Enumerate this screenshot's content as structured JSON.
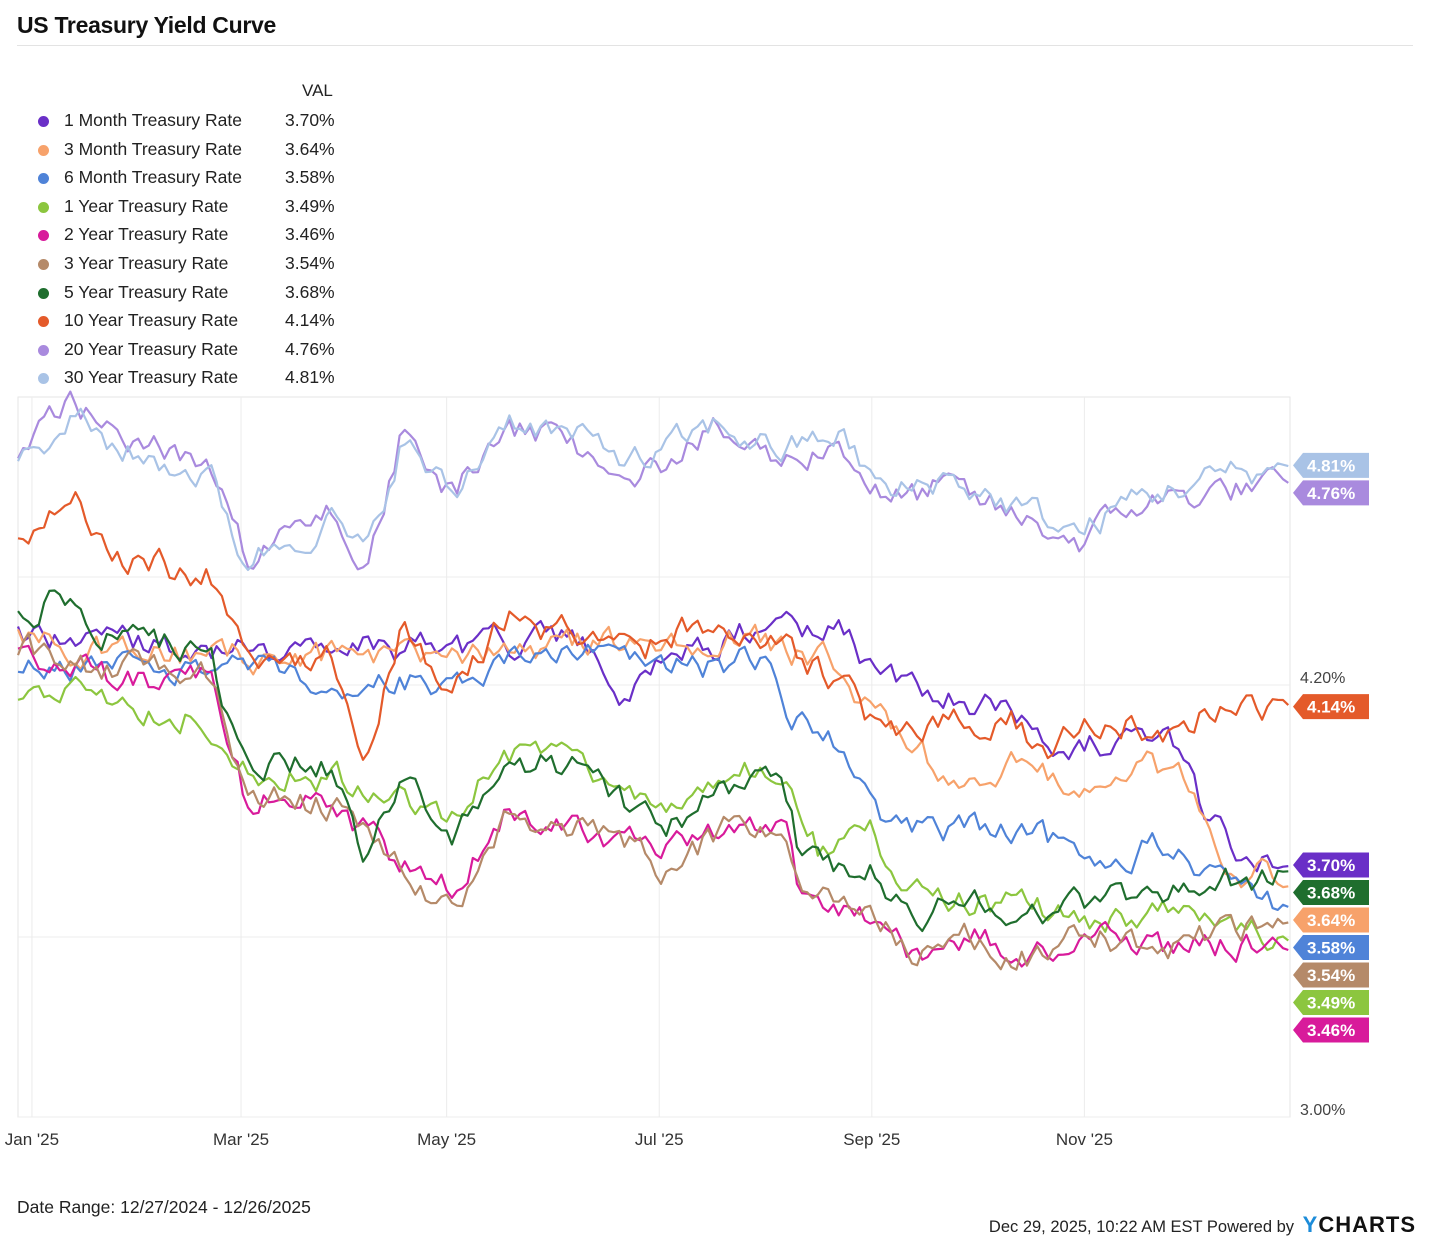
{
  "title": "US Treasury Yield Curve",
  "legend_header": "VAL",
  "footer": {
    "date_range": "Date Range: 12/27/2024 - 12/26/2025",
    "timestamp": "Dec 29, 2025, 10:22 AM EST Powered by",
    "brand_y": "Y",
    "brand_rest": "CHARTS"
  },
  "chart_data": {
    "type": "line",
    "title": "US Treasury Yield Curve",
    "x_range": [
      0,
      365
    ],
    "x_tick_positions": [
      4,
      64,
      123,
      184,
      245,
      306
    ],
    "x_tick_labels": [
      "Jan '25",
      "Mar '25",
      "May '25",
      "Jul '25",
      "Sep '25",
      "Nov '25"
    ],
    "ylim": [
      3.0,
      5.0
    ],
    "y_tick_values": [
      3.0,
      3.5,
      4.2,
      4.5
    ],
    "y_tick_labels": [
      "3.00%",
      "",
      "4.20%",
      ""
    ],
    "grid": true,
    "series": [
      {
        "name": "1 Month Treasury Rate",
        "value": "3.70%",
        "last": 3.7,
        "color": "#6a2fc7",
        "knots": [
          [
            0,
            4.35
          ],
          [
            30,
            4.32
          ],
          [
            60,
            4.3
          ],
          [
            90,
            4.3
          ],
          [
            120,
            4.3
          ],
          [
            150,
            4.32
          ],
          [
            165,
            4.3
          ],
          [
            175,
            4.15
          ],
          [
            185,
            4.3
          ],
          [
            200,
            4.29
          ],
          [
            215,
            4.38
          ],
          [
            235,
            4.35
          ],
          [
            248,
            4.22
          ],
          [
            265,
            4.18
          ],
          [
            285,
            4.13
          ],
          [
            300,
            4.05
          ],
          [
            320,
            4.02
          ],
          [
            335,
            4.02
          ],
          [
            340,
            3.85
          ],
          [
            350,
            3.74
          ],
          [
            365,
            3.7
          ]
        ]
      },
      {
        "name": "3 Month Treasury Rate",
        "value": "3.64%",
        "last": 3.64,
        "color": "#f7a26b",
        "knots": [
          [
            0,
            4.32
          ],
          [
            30,
            4.28
          ],
          [
            60,
            4.28
          ],
          [
            90,
            4.28
          ],
          [
            120,
            4.3
          ],
          [
            150,
            4.3
          ],
          [
            180,
            4.33
          ],
          [
            200,
            4.33
          ],
          [
            215,
            4.32
          ],
          [
            235,
            4.25
          ],
          [
            250,
            4.08
          ],
          [
            265,
            3.96
          ],
          [
            285,
            3.98
          ],
          [
            300,
            3.92
          ],
          [
            320,
            3.98
          ],
          [
            335,
            3.95
          ],
          [
            345,
            3.72
          ],
          [
            365,
            3.64
          ]
        ]
      },
      {
        "name": "6 Month Treasury Rate",
        "value": "3.58%",
        "last": 3.58,
        "color": "#4f83d8",
        "knots": [
          [
            0,
            4.25
          ],
          [
            30,
            4.25
          ],
          [
            60,
            4.25
          ],
          [
            90,
            4.2
          ],
          [
            120,
            4.2
          ],
          [
            150,
            4.28
          ],
          [
            165,
            4.3
          ],
          [
            180,
            4.25
          ],
          [
            200,
            4.25
          ],
          [
            215,
            4.28
          ],
          [
            220,
            4.1
          ],
          [
            235,
            4.05
          ],
          [
            250,
            3.82
          ],
          [
            265,
            3.8
          ],
          [
            290,
            3.78
          ],
          [
            310,
            3.72
          ],
          [
            325,
            3.75
          ],
          [
            345,
            3.65
          ],
          [
            365,
            3.58
          ]
        ]
      },
      {
        "name": "1 Year Treasury Rate",
        "value": "3.49%",
        "last": 3.49,
        "color": "#8cc63f",
        "knots": [
          [
            0,
            4.15
          ],
          [
            30,
            4.17
          ],
          [
            55,
            4.1
          ],
          [
            70,
            3.95
          ],
          [
            90,
            3.95
          ],
          [
            105,
            3.88
          ],
          [
            123,
            3.82
          ],
          [
            140,
            4.0
          ],
          [
            160,
            4.0
          ],
          [
            175,
            3.92
          ],
          [
            185,
            3.85
          ],
          [
            200,
            3.95
          ],
          [
            220,
            3.98
          ],
          [
            230,
            3.75
          ],
          [
            245,
            3.78
          ],
          [
            255,
            3.6
          ],
          [
            270,
            3.6
          ],
          [
            290,
            3.58
          ],
          [
            310,
            3.55
          ],
          [
            330,
            3.58
          ],
          [
            350,
            3.52
          ],
          [
            365,
            3.49
          ]
        ]
      },
      {
        "name": "2 Year Treasury Rate",
        "value": "3.46%",
        "last": 3.46,
        "color": "#d81b9b",
        "knots": [
          [
            0,
            4.27
          ],
          [
            25,
            4.22
          ],
          [
            55,
            4.2
          ],
          [
            65,
            3.9
          ],
          [
            90,
            3.87
          ],
          [
            110,
            3.7
          ],
          [
            125,
            3.62
          ],
          [
            140,
            3.85
          ],
          [
            160,
            3.82
          ],
          [
            185,
            3.72
          ],
          [
            205,
            3.8
          ],
          [
            220,
            3.78
          ],
          [
            225,
            3.6
          ],
          [
            245,
            3.57
          ],
          [
            255,
            3.45
          ],
          [
            275,
            3.5
          ],
          [
            290,
            3.43
          ],
          [
            310,
            3.52
          ],
          [
            330,
            3.47
          ],
          [
            350,
            3.48
          ],
          [
            365,
            3.46
          ]
        ]
      },
      {
        "name": "3 Year Treasury Rate",
        "value": "3.54%",
        "last": 3.54,
        "color": "#b58a69",
        "knots": [
          [
            0,
            4.3
          ],
          [
            25,
            4.25
          ],
          [
            55,
            4.22
          ],
          [
            65,
            3.9
          ],
          [
            90,
            3.87
          ],
          [
            110,
            3.7
          ],
          [
            125,
            3.58
          ],
          [
            140,
            3.85
          ],
          [
            160,
            3.82
          ],
          [
            185,
            3.7
          ],
          [
            205,
            3.8
          ],
          [
            220,
            3.78
          ],
          [
            225,
            3.58
          ],
          [
            245,
            3.58
          ],
          [
            255,
            3.45
          ],
          [
            275,
            3.5
          ],
          [
            290,
            3.45
          ],
          [
            310,
            3.5
          ],
          [
            330,
            3.48
          ],
          [
            350,
            3.52
          ],
          [
            365,
            3.54
          ]
        ]
      },
      {
        "name": "5 Year Treasury Rate",
        "value": "3.68%",
        "last": 3.68,
        "color": "#1f6e2e",
        "knots": [
          [
            0,
            4.4
          ],
          [
            15,
            4.45
          ],
          [
            25,
            4.35
          ],
          [
            55,
            4.3
          ],
          [
            65,
            3.98
          ],
          [
            90,
            3.97
          ],
          [
            100,
            3.72
          ],
          [
            110,
            3.92
          ],
          [
            125,
            3.75
          ],
          [
            140,
            4.0
          ],
          [
            160,
            3.96
          ],
          [
            185,
            3.8
          ],
          [
            205,
            3.92
          ],
          [
            220,
            3.9
          ],
          [
            225,
            3.7
          ],
          [
            245,
            3.68
          ],
          [
            255,
            3.55
          ],
          [
            275,
            3.62
          ],
          [
            290,
            3.55
          ],
          [
            305,
            3.6
          ],
          [
            320,
            3.62
          ],
          [
            345,
            3.65
          ],
          [
            365,
            3.68
          ]
        ]
      },
      {
        "name": "10 Year Treasury Rate",
        "value": "4.14%",
        "last": 4.14,
        "color": "#e45a2a",
        "knots": [
          [
            0,
            4.58
          ],
          [
            15,
            4.75
          ],
          [
            30,
            4.55
          ],
          [
            55,
            4.5
          ],
          [
            70,
            4.25
          ],
          [
            90,
            4.28
          ],
          [
            100,
            4.0
          ],
          [
            110,
            4.35
          ],
          [
            125,
            4.18
          ],
          [
            140,
            4.4
          ],
          [
            155,
            4.35
          ],
          [
            180,
            4.3
          ],
          [
            200,
            4.38
          ],
          [
            215,
            4.32
          ],
          [
            230,
            4.25
          ],
          [
            250,
            4.05
          ],
          [
            265,
            4.1
          ],
          [
            285,
            4.1
          ],
          [
            295,
            4.02
          ],
          [
            310,
            4.1
          ],
          [
            330,
            4.08
          ],
          [
            345,
            4.15
          ],
          [
            365,
            4.14
          ]
        ]
      },
      {
        "name": "20 Year Treasury Rate",
        "value": "4.76%",
        "last": 4.76,
        "color": "#a98ade",
        "knots": [
          [
            0,
            4.85
          ],
          [
            15,
            5.0
          ],
          [
            30,
            4.88
          ],
          [
            55,
            4.8
          ],
          [
            65,
            4.55
          ],
          [
            90,
            4.68
          ],
          [
            100,
            4.52
          ],
          [
            110,
            4.9
          ],
          [
            125,
            4.72
          ],
          [
            140,
            4.92
          ],
          [
            155,
            4.88
          ],
          [
            180,
            4.8
          ],
          [
            200,
            4.9
          ],
          [
            220,
            4.82
          ],
          [
            235,
            4.88
          ],
          [
            250,
            4.7
          ],
          [
            265,
            4.75
          ],
          [
            290,
            4.65
          ],
          [
            305,
            4.6
          ],
          [
            320,
            4.7
          ],
          [
            345,
            4.74
          ],
          [
            365,
            4.76
          ]
        ]
      },
      {
        "name": "30 Year Treasury Rate",
        "value": "4.81%",
        "last": 4.81,
        "color": "#a9c3e6",
        "knots": [
          [
            0,
            4.82
          ],
          [
            15,
            4.95
          ],
          [
            30,
            4.85
          ],
          [
            55,
            4.78
          ],
          [
            65,
            4.55
          ],
          [
            90,
            4.66
          ],
          [
            100,
            4.55
          ],
          [
            110,
            4.88
          ],
          [
            125,
            4.72
          ],
          [
            140,
            4.95
          ],
          [
            155,
            4.9
          ],
          [
            180,
            4.82
          ],
          [
            200,
            4.92
          ],
          [
            220,
            4.85
          ],
          [
            235,
            4.9
          ],
          [
            250,
            4.72
          ],
          [
            265,
            4.78
          ],
          [
            290,
            4.68
          ],
          [
            305,
            4.62
          ],
          [
            320,
            4.72
          ],
          [
            345,
            4.78
          ],
          [
            365,
            4.81
          ]
        ]
      }
    ]
  }
}
